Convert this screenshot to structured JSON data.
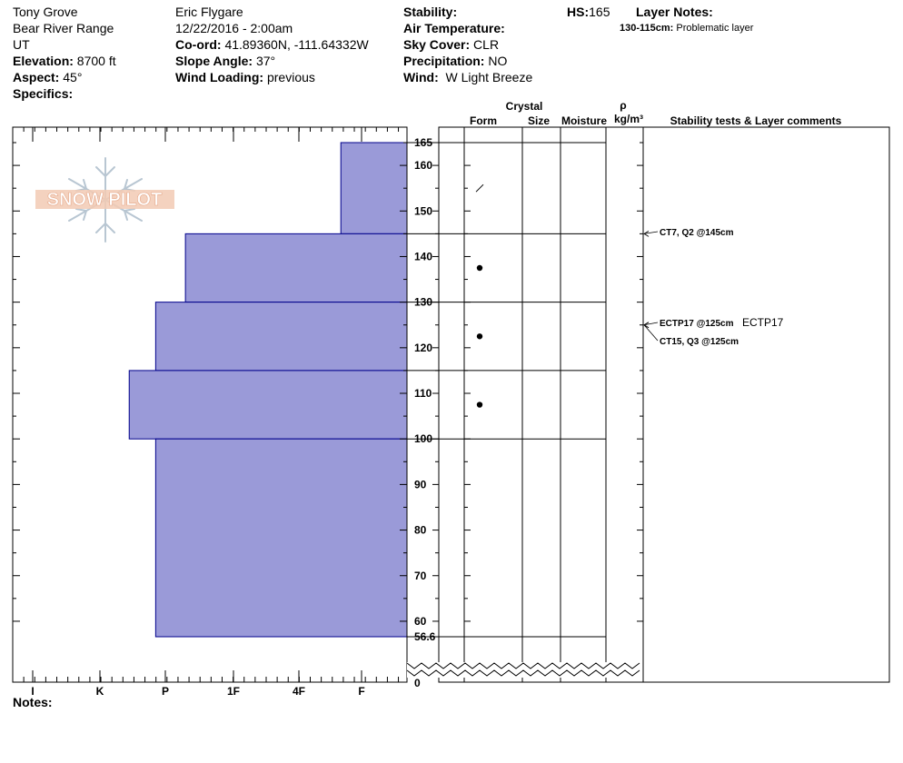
{
  "site": {
    "location": "Tony Grove",
    "range": "Bear River Range",
    "state": "UT",
    "elevation_label": "Elevation:",
    "elevation": "8700 ft",
    "aspect_label": "Aspect:",
    "aspect": "45°",
    "specifics_label": "Specifics:"
  },
  "obs": {
    "observer": "Eric Flygare",
    "datetime": "12/22/2016 - 2:00am",
    "coord_label": "Co-ord:",
    "coord": "41.89360N, -111.64332W",
    "slope_label": "Slope Angle:",
    "slope": "37°",
    "wind_loading_label": "Wind Loading:",
    "wind_loading": "previous"
  },
  "conditions": {
    "stability_label": "Stability:",
    "air_temp_label": "Air Temperature:",
    "sky_label": "Sky Cover:",
    "sky": "CLR",
    "precip_label": "Precipitation:",
    "precip": "NO",
    "wind_label": "Wind:",
    "wind": "W Light Breeze"
  },
  "hs": {
    "label": "HS:",
    "value": "165"
  },
  "layer_notes": {
    "label": "Layer Notes:",
    "items": [
      {
        "range": "130-115cm:",
        "text": "Problematic layer"
      }
    ]
  },
  "logo": {
    "text": "SNOW PILOT"
  },
  "column_headers": {
    "crystal": "Crystal",
    "form": "Form",
    "size": "Size",
    "moisture": "Moisture",
    "rho": "ρ",
    "density": "kg/m³",
    "comments": "Stability tests & Layer comments"
  },
  "notes_label": "Notes:",
  "colors": {
    "hardness_fill": "#9a9ad8",
    "hardness_stroke": "#00008b"
  },
  "chart_data": {
    "type": "bar",
    "orientation": "horizontal",
    "x_categories": [
      "I",
      "K",
      "P",
      "1F",
      "4F",
      "F"
    ],
    "x_reversed": true,
    "x_range": [
      0,
      6
    ],
    "y_range": [
      56.6,
      165
    ],
    "y_ticks": [
      60,
      70,
      80,
      90,
      100,
      110,
      120,
      130,
      140,
      150,
      160
    ],
    "y_extra_labels": [
      "165",
      "56.6",
      "0"
    ],
    "layer_lines": [
      165,
      145,
      130,
      115,
      100,
      56.6
    ],
    "hardness_layers": [
      {
        "top": 165,
        "bottom": 145,
        "hardness": 1
      },
      {
        "top": 145,
        "bottom": 130,
        "hardness": 3.35
      },
      {
        "top": 130,
        "bottom": 115,
        "hardness": 3.8
      },
      {
        "top": 115,
        "bottom": 100,
        "hardness": 4.2
      },
      {
        "top": 100,
        "bottom": 56.6,
        "hardness": 3.8
      }
    ],
    "grain_forms": [
      {
        "depth": 155,
        "symbol": "decomposing"
      },
      {
        "depth": 137.5,
        "symbol": "rounded"
      },
      {
        "depth": 122.5,
        "symbol": "rounded"
      },
      {
        "depth": 107.5,
        "symbol": "rounded"
      }
    ],
    "stability_tests": [
      {
        "depth": 145,
        "label": "CT7, Q2 @145cm",
        "extra": ""
      },
      {
        "depth": 125,
        "label": "ECTP17 @125cm",
        "extra": "ECTP17"
      },
      {
        "depth": 125,
        "label": "CT15, Q3 @125cm",
        "extra": ""
      }
    ]
  }
}
